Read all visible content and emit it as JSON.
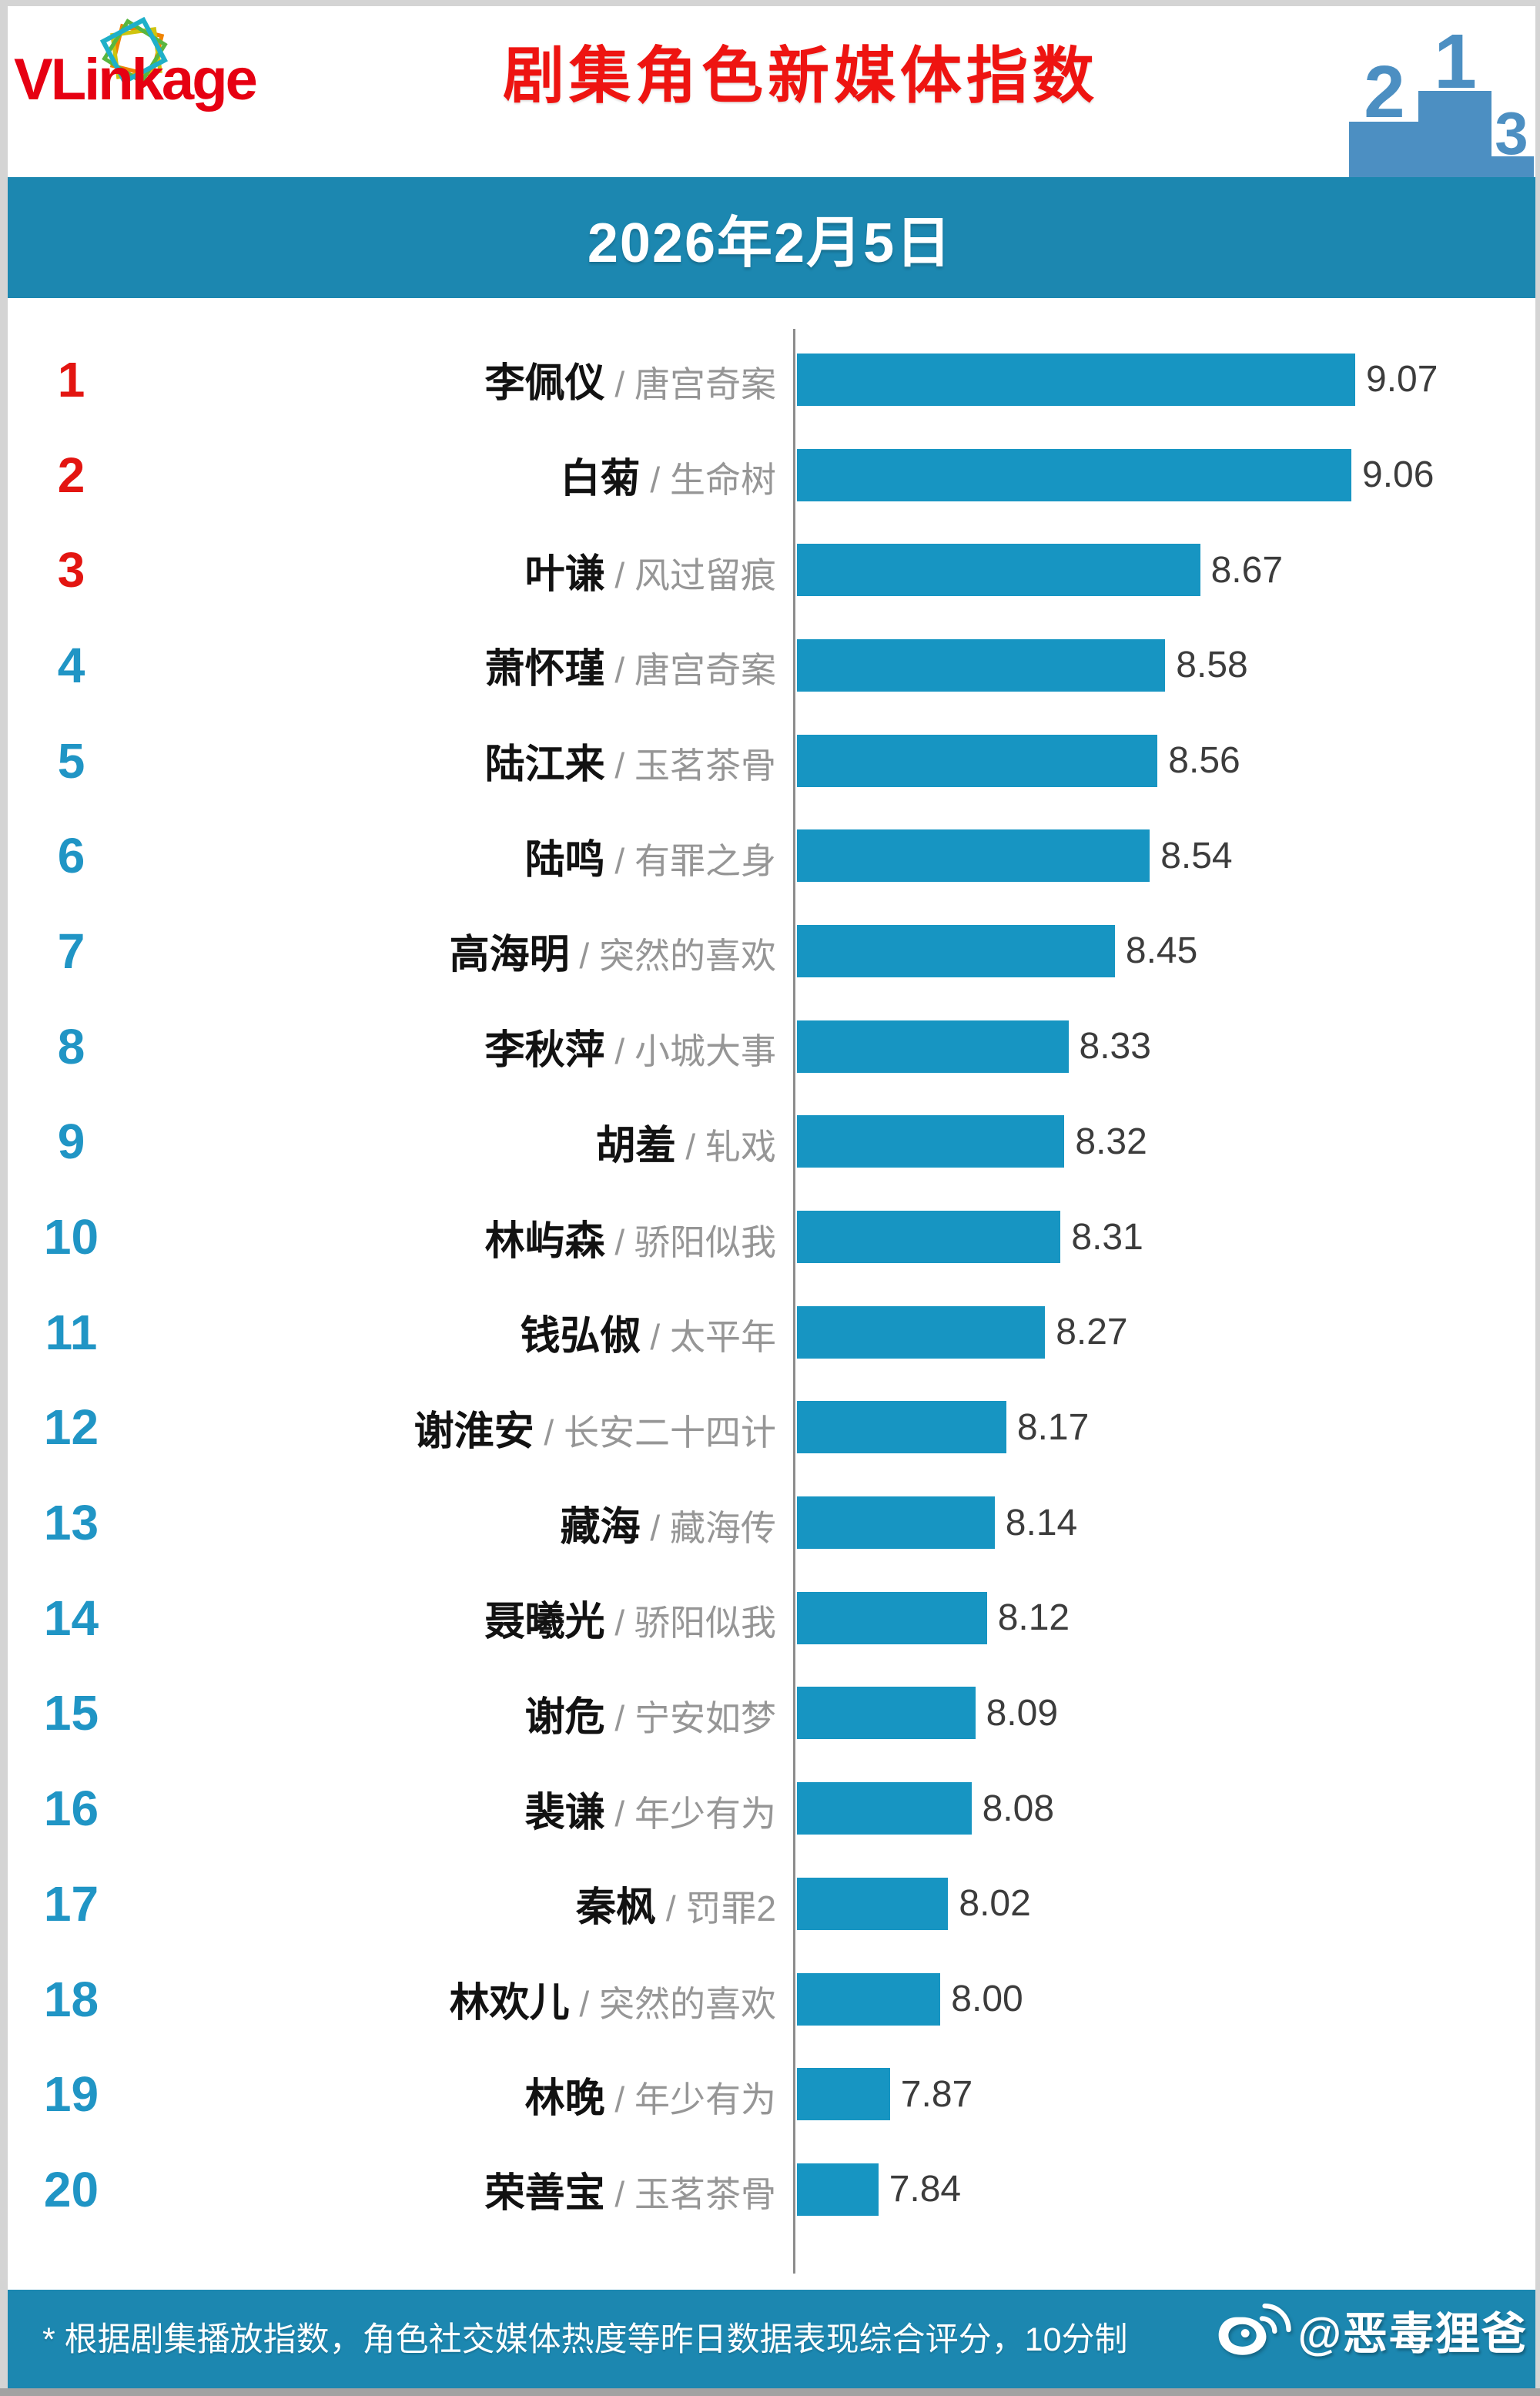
{
  "header": {
    "logo_text": "VLinkage",
    "title": "剧集角色新媒体指数",
    "podium_numbers": [
      "2",
      "1",
      "3"
    ]
  },
  "date_banner": {
    "date": "2026年2月5日"
  },
  "chart_data": {
    "type": "bar",
    "orientation": "horizontal",
    "title": "剧集角色新媒体指数",
    "date": "2026年2月5日",
    "separator": " / ",
    "xlim": [
      7.63,
      9.6
    ],
    "scale_note": "10分制",
    "legend": "none",
    "grid": "off",
    "entries": [
      {
        "rank": "1",
        "name": "李佩仪",
        "show": "唐宫奇案",
        "value": "9.07"
      },
      {
        "rank": "2",
        "name": "白菊",
        "show": "生命树",
        "value": "9.06"
      },
      {
        "rank": "3",
        "name": "叶谦",
        "show": "风过留痕",
        "value": "8.67"
      },
      {
        "rank": "4",
        "name": "萧怀瑾",
        "show": "唐宫奇案",
        "value": "8.58"
      },
      {
        "rank": "5",
        "name": "陆江来",
        "show": "玉茗茶骨",
        "value": "8.56"
      },
      {
        "rank": "6",
        "name": "陆鸣",
        "show": "有罪之身",
        "value": "8.54"
      },
      {
        "rank": "7",
        "name": "高海明",
        "show": "突然的喜欢",
        "value": "8.45"
      },
      {
        "rank": "8",
        "name": "李秋萍",
        "show": "小城大事",
        "value": "8.33"
      },
      {
        "rank": "9",
        "name": "胡羞",
        "show": "轧戏",
        "value": "8.32"
      },
      {
        "rank": "10",
        "name": "林屿森",
        "show": "骄阳似我",
        "value": "8.31"
      },
      {
        "rank": "11",
        "name": "钱弘俶",
        "show": "太平年",
        "value": "8.27"
      },
      {
        "rank": "12",
        "name": "谢淮安",
        "show": "长安二十四计",
        "value": "8.17"
      },
      {
        "rank": "13",
        "name": "藏海",
        "show": "藏海传",
        "value": "8.14"
      },
      {
        "rank": "14",
        "name": "聂曦光",
        "show": "骄阳似我",
        "value": "8.12"
      },
      {
        "rank": "15",
        "name": "谢危",
        "show": "宁安如梦",
        "value": "8.09"
      },
      {
        "rank": "16",
        "name": "裴谦",
        "show": "年少有为",
        "value": "8.08"
      },
      {
        "rank": "17",
        "name": "秦枫",
        "show": "罚罪2",
        "value": "8.02"
      },
      {
        "rank": "18",
        "name": "林欢儿",
        "show": "突然的喜欢",
        "value": "8.00"
      },
      {
        "rank": "19",
        "name": "林晚",
        "show": "年少有为",
        "value": "7.87"
      },
      {
        "rank": "20",
        "name": "荣善宝",
        "show": "玉茗茶骨",
        "value": "7.84"
      }
    ]
  },
  "footer": {
    "note": "* 根据剧集播放指数，角色社交媒体热度等昨日数据表现综合评分，10分制",
    "watermark": "@恶毒狸爸"
  },
  "colors": {
    "banner_blue": "#1c87b0",
    "bar_blue": "#1795c2",
    "rank_red": "#e31511",
    "rank_blue": "#2095c5",
    "title_red": "#ee1411",
    "logo_red": "#e60012",
    "name_black": "#121212",
    "show_gray": "#969696",
    "value_gray": "#3c3c3c",
    "axis_gray": "#8c8c8c",
    "podium_blue": "#4c8fc2"
  }
}
